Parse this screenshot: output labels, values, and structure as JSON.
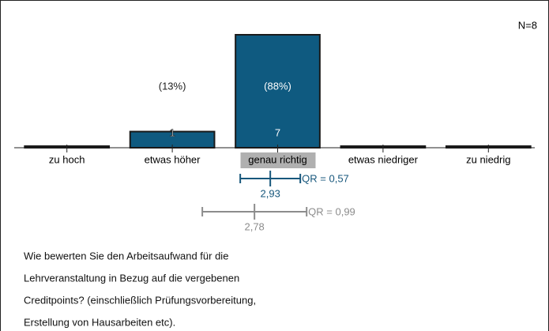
{
  "chart_data": {
    "type": "bar",
    "categories": [
      "zu hoch",
      "etwas höher",
      "genau richtig",
      "etwas niedriger",
      "zu niedrig"
    ],
    "values": [
      0,
      1,
      7,
      0,
      0
    ],
    "percentages": [
      null,
      13,
      88,
      null,
      null
    ],
    "percentage_labels": [
      null,
      "(13%)",
      "(88%)",
      null,
      null
    ],
    "color": "#0f5a80",
    "highlighted_category": 2,
    "note": "N=8",
    "summaries": [
      {
        "mean": 2.93,
        "mean_label": "2,93",
        "qr": 0.57,
        "qr_label": "QR = 0,57",
        "color": "#17577c"
      },
      {
        "mean": 2.78,
        "mean_label": "2,78",
        "qr": 0.99,
        "qr_label": "QR = 0,99",
        "color": "#8c8c8c"
      }
    ],
    "question_lines": [
      "Wie bewerten Sie den Arbeitsaufwand für die",
      "Lehrveranstaltung in Bezug auf die vergebenen",
      "Creditpoints? (einschließlich Prüfungsvorbereitung,",
      "Erstellung von Hausarbeiten etc)."
    ]
  }
}
